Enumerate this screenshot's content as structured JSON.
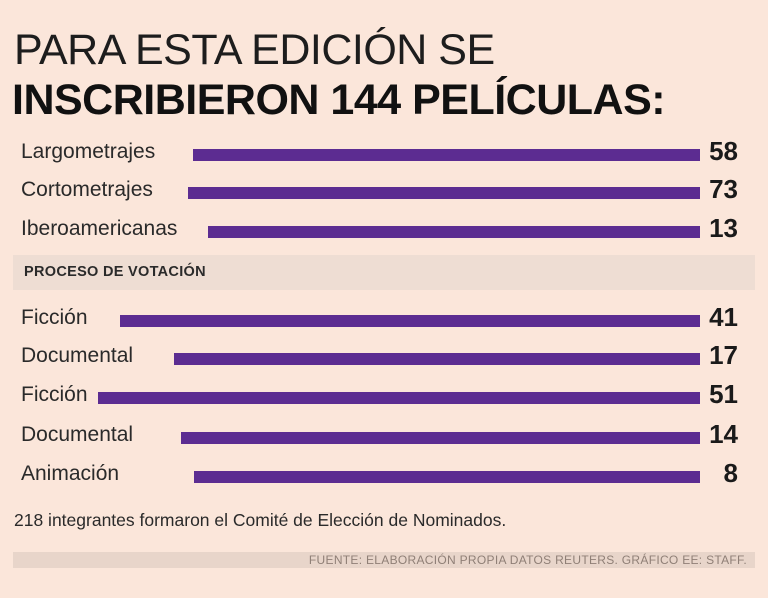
{
  "title": {
    "line1": "PARA ESTA EDICIÓN SE",
    "line2": "INSCRIBIERON 144 PELÍCULAS:"
  },
  "section_label": "PROCESO DE VOTACIÓN",
  "note": "218 integrantes formaron el Comité de Elección de Nominados.",
  "source": "FUENTE: ELABORACIÓN PROPIA DATOS REUTERS.  GRÁFICO EE: STAFF.",
  "colors": {
    "bar": "#5c2c91",
    "background": "#fbe6da"
  },
  "chart_data": {
    "type": "bar",
    "orientation": "horizontal",
    "title": "PARA ESTA EDICIÓN SE INSCRIBIERON 144 PELÍCULAS:",
    "groups": [
      {
        "name": "",
        "categories": [
          "Largometrajes",
          "Cortometrajes",
          "Iberoamericanas"
        ],
        "values": [
          58,
          73,
          13
        ]
      },
      {
        "name": "PROCESO DE VOTACIÓN",
        "categories": [
          "Ficción",
          "Documental",
          "Ficción",
          "Documental",
          "Animación"
        ],
        "values": [
          41,
          17,
          51,
          14,
          8
        ]
      }
    ]
  }
}
